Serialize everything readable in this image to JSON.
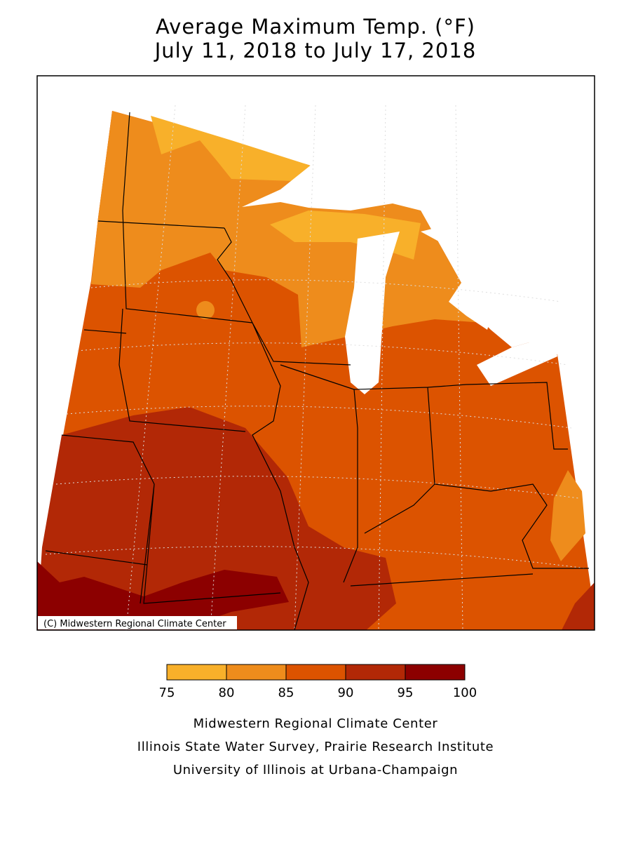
{
  "header": {
    "title": "Average Maximum Temp. (°F)",
    "subtitle": "July 11, 2018 to July 17, 2018"
  },
  "map": {
    "copyright": "(C) Midwestern Regional Climate Center"
  },
  "legend": {
    "ticks": [
      75,
      80,
      85,
      90,
      95,
      100
    ],
    "colors": [
      "#f8b02a",
      "#ee8c1c",
      "#dc5300",
      "#b22806",
      "#8c0000"
    ]
  },
  "credits": [
    "Midwestern Regional Climate Center",
    "Illinois State Water Survey, Prairie Research Institute",
    "University of Illinois at Urbana-Champaign"
  ]
}
